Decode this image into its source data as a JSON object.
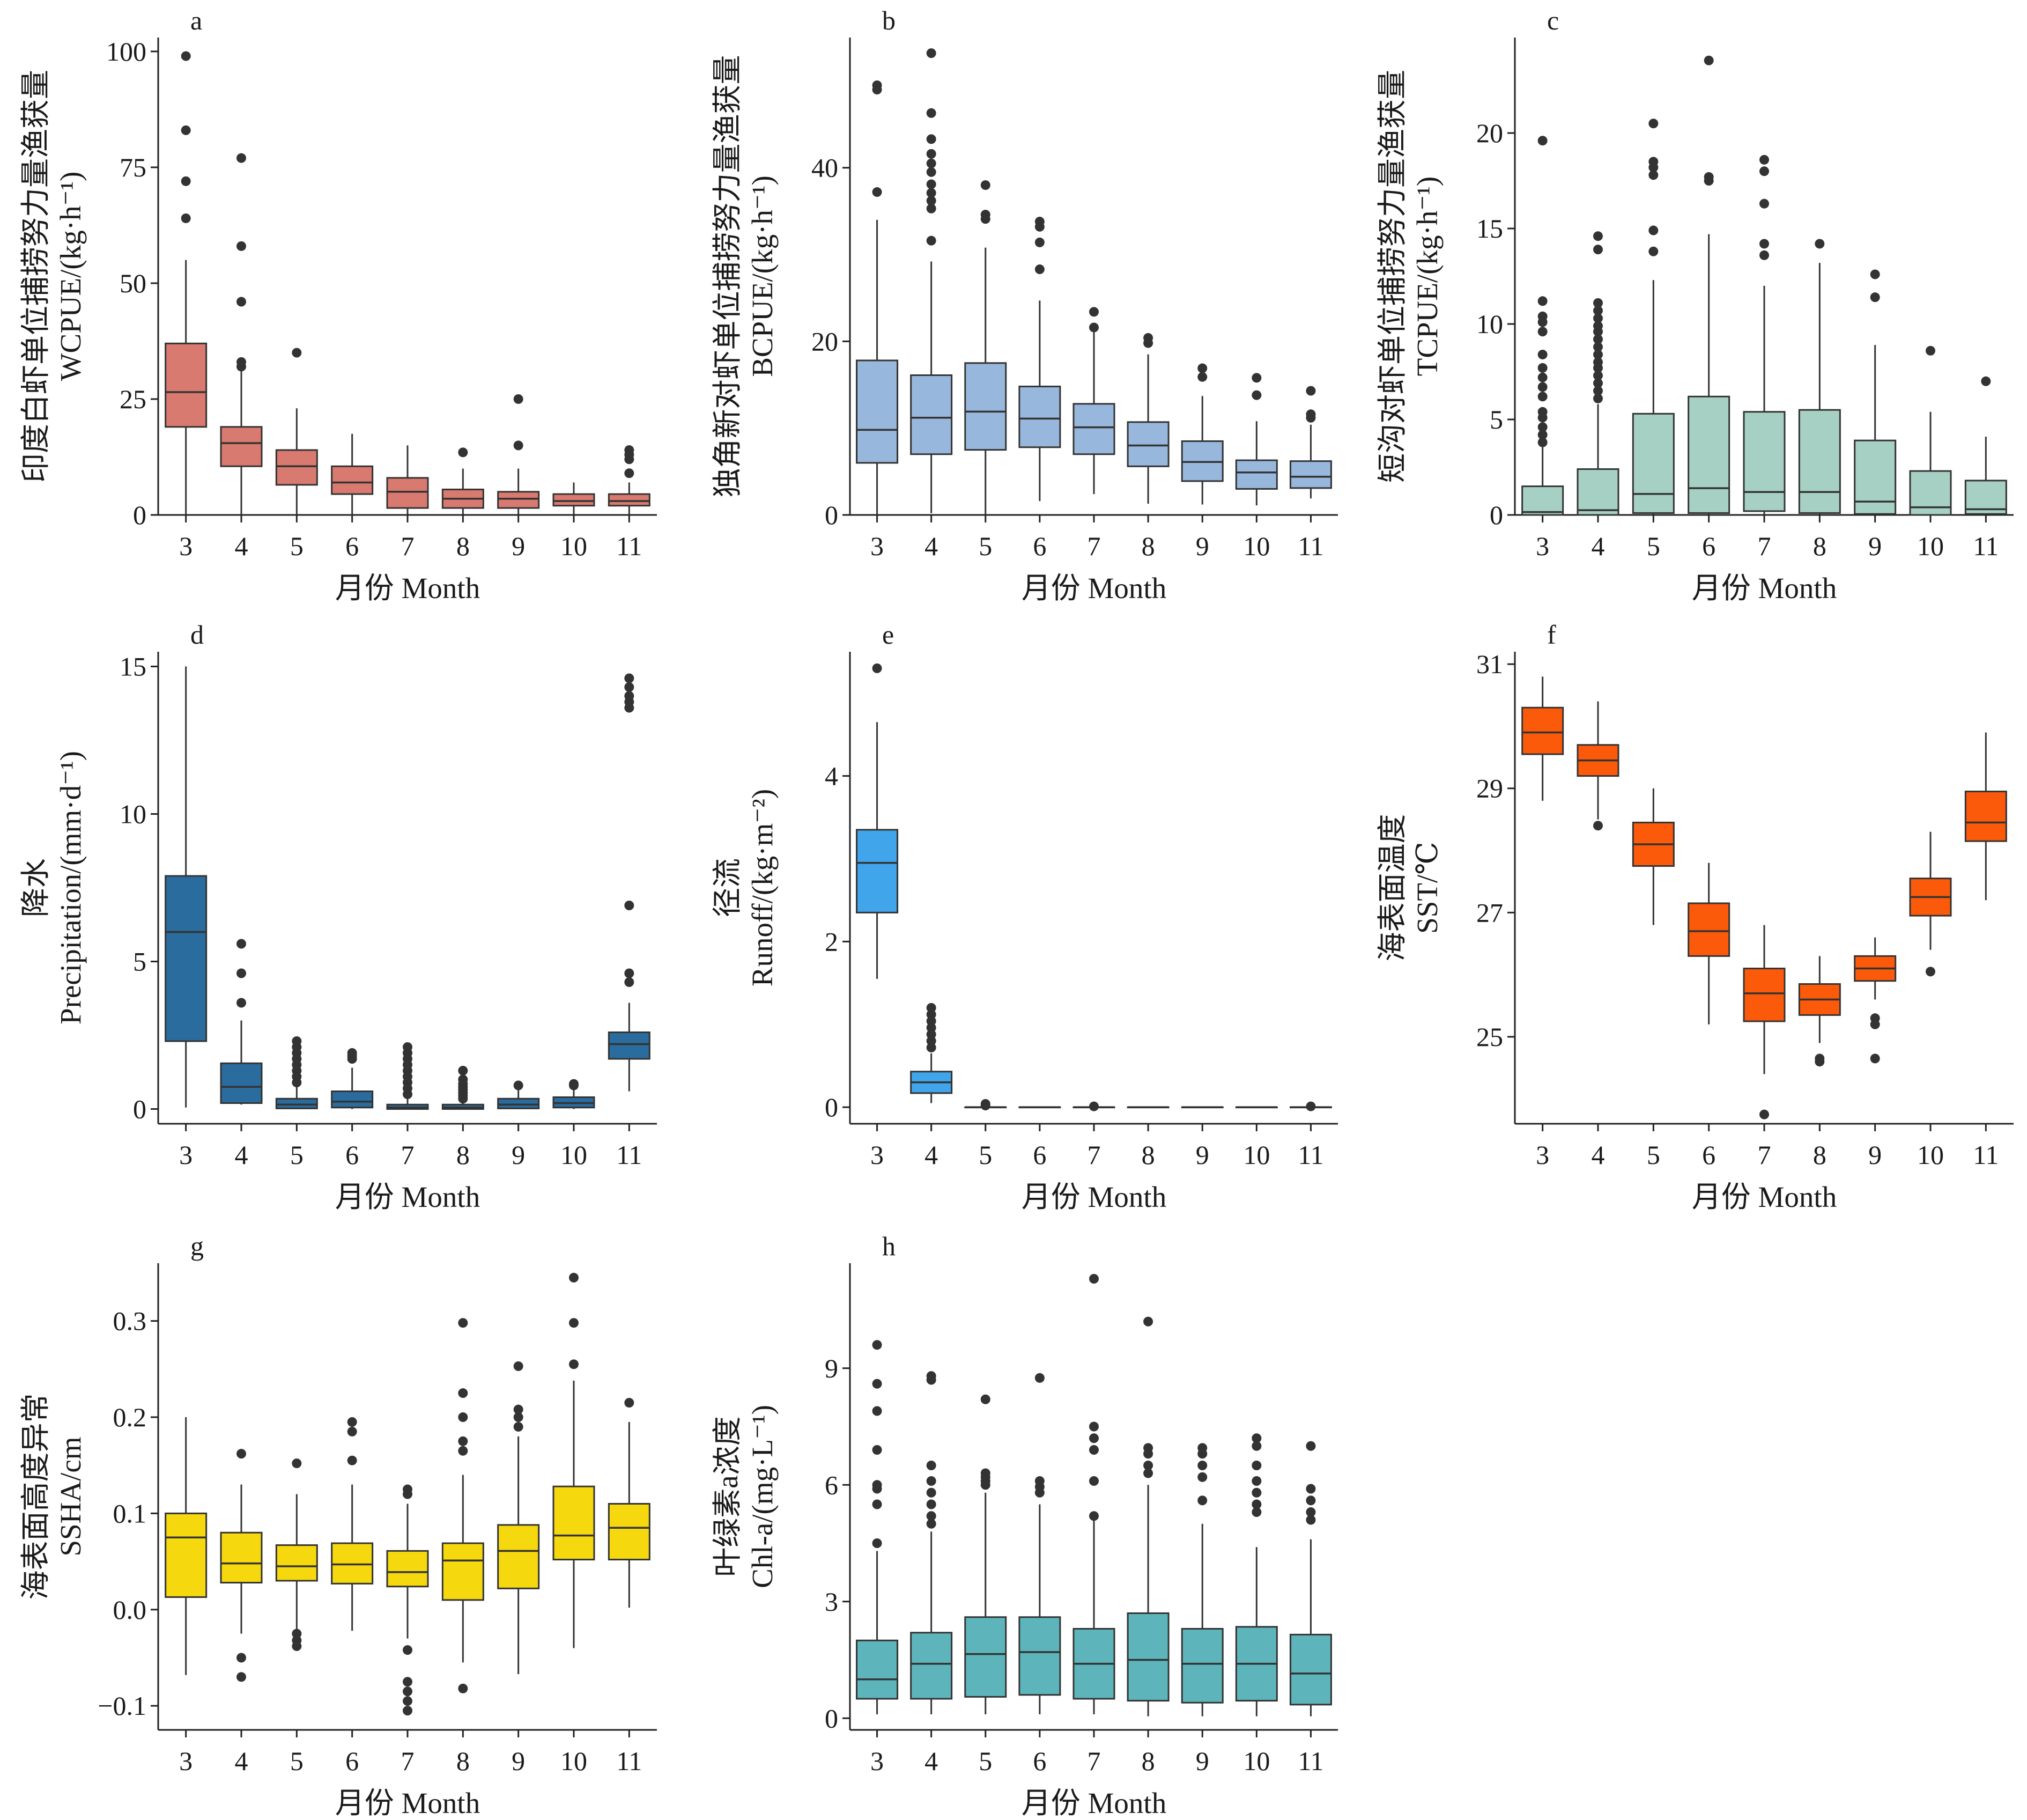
{
  "figure": {
    "common_xlabel": "月份 Month",
    "months": [
      "3",
      "4",
      "5",
      "6",
      "7",
      "8",
      "9",
      "10",
      "11"
    ]
  },
  "chart_data": [
    {
      "id": "a",
      "letter": "a",
      "type": "box",
      "ylabel": "印度白虾单位捕捞努力量渔获量",
      "ylabel2": "WCPUE/(kg·h⁻¹)",
      "xlabel": "月份 Month",
      "ylim": [
        0,
        103
      ],
      "yticks": [
        0,
        25,
        50,
        75,
        100
      ],
      "color": "#d87a6f",
      "categories": [
        "3",
        "4",
        "5",
        "6",
        "7",
        "8",
        "9",
        "10",
        "11"
      ],
      "boxes": [
        {
          "lw": 0,
          "q1": 19,
          "med": 26.5,
          "q3": 37,
          "uw": 55,
          "out": [
            64,
            72,
            83,
            99
          ]
        },
        {
          "lw": 0,
          "q1": 10.5,
          "med": 15.5,
          "q3": 19,
          "uw": 31,
          "out": [
            32,
            33,
            46,
            58,
            77
          ]
        },
        {
          "lw": 0,
          "q1": 6.5,
          "med": 10.5,
          "q3": 14,
          "uw": 23,
          "out": [
            35
          ]
        },
        {
          "lw": 0,
          "q1": 4.5,
          "med": 7,
          "q3": 10.5,
          "uw": 17.5,
          "out": []
        },
        {
          "lw": 0,
          "q1": 1.5,
          "med": 5,
          "q3": 8,
          "uw": 15,
          "out": []
        },
        {
          "lw": 0,
          "q1": 1.5,
          "med": 3.5,
          "q3": 5.5,
          "uw": 10,
          "out": [
            13.5
          ]
        },
        {
          "lw": 0,
          "q1": 1.5,
          "med": 3.5,
          "q3": 5,
          "uw": 10,
          "out": [
            15,
            25
          ]
        },
        {
          "lw": 0,
          "q1": 2,
          "med": 3,
          "q3": 4.5,
          "uw": 7,
          "out": []
        },
        {
          "lw": 0,
          "q1": 2,
          "med": 3,
          "q3": 4.5,
          "uw": 7,
          "out": [
            9,
            12,
            13,
            14
          ]
        }
      ]
    },
    {
      "id": "b",
      "letter": "b",
      "type": "box",
      "ylabel": "独角新对虾单位捕捞努力量渔获量",
      "ylabel2": "BCPUE/(kg·h⁻¹)",
      "xlabel": "月份 Month",
      "ylim": [
        0,
        55
      ],
      "yticks": [
        0,
        20,
        40
      ],
      "color": "#98b7dc",
      "categories": [
        "3",
        "4",
        "5",
        "6",
        "7",
        "8",
        "9",
        "10",
        "11"
      ],
      "boxes": [
        {
          "lw": 0,
          "q1": 6,
          "med": 9.8,
          "q3": 17.8,
          "uw": 34,
          "out": [
            37.2,
            49,
            49.5
          ]
        },
        {
          "lw": 0.2,
          "q1": 7,
          "med": 11.2,
          "q3": 16.1,
          "uw": 29.2,
          "out": [
            31.6,
            35.3,
            36.2,
            37.1,
            38.1,
            39.5,
            40.5,
            41.6,
            43.3,
            46.3,
            53.2
          ]
        },
        {
          "lw": 0,
          "q1": 7.5,
          "med": 11.9,
          "q3": 17.5,
          "uw": 30.8,
          "out": [
            34.1,
            34.6,
            38
          ]
        },
        {
          "lw": 1.6,
          "q1": 7.8,
          "med": 11.1,
          "q3": 14.8,
          "uw": 24.7,
          "out": [
            28.3,
            31.4,
            33.2,
            33.8
          ]
        },
        {
          "lw": 2.4,
          "q1": 7,
          "med": 10.1,
          "q3": 12.8,
          "uw": 21.1,
          "out": [
            21.6,
            23.4
          ]
        },
        {
          "lw": 1.3,
          "q1": 5.6,
          "med": 8,
          "q3": 10.7,
          "uw": 18.5,
          "out": [
            19.8,
            20.4
          ]
        },
        {
          "lw": 1.2,
          "q1": 3.9,
          "med": 6.1,
          "q3": 8.5,
          "uw": 13.7,
          "out": [
            15.9,
            16.9
          ]
        },
        {
          "lw": 1.1,
          "q1": 3,
          "med": 4.9,
          "q3": 6.3,
          "uw": 10.8,
          "out": [
            13.8,
            15.8
          ]
        },
        {
          "lw": 1.9,
          "q1": 3.1,
          "med": 4.4,
          "q3": 6.2,
          "uw": 10.4,
          "out": [
            11.2,
            11.6,
            14.3
          ]
        }
      ]
    },
    {
      "id": "c",
      "letter": "c",
      "type": "box",
      "ylabel": "短沟对虾单位捕捞努力量渔获量",
      "ylabel2": "TCPUE/(kg·h⁻¹)",
      "xlabel": "月份 Month",
      "ylim": [
        0,
        25
      ],
      "yticks": [
        0,
        5,
        10,
        15,
        20
      ],
      "color": "#a6d0c3",
      "categories": [
        "3",
        "4",
        "5",
        "6",
        "7",
        "8",
        "9",
        "10",
        "11"
      ],
      "boxes": [
        {
          "lw": 0,
          "q1": 0,
          "med": 0.15,
          "q3": 1.5,
          "uw": 3.6,
          "out": [
            3.8,
            4.2,
            4.6,
            5.1,
            5.4,
            6.2,
            6.7,
            7.2,
            7.7,
            8.4,
            9.6,
            10.1,
            10.4,
            11.2,
            19.6
          ]
        },
        {
          "lw": 0,
          "q1": 0,
          "med": 0.25,
          "q3": 2.4,
          "uw": 5.8,
          "out": [
            6.1,
            6.5,
            6.9,
            7.3,
            7.7,
            8,
            8.4,
            8.8,
            9.2,
            9.6,
            9.9,
            10.3,
            10.7,
            11.1,
            13.9,
            14.6
          ]
        },
        {
          "lw": 0,
          "q1": 0.1,
          "med": 1.1,
          "q3": 5.3,
          "uw": 12.3,
          "out": [
            13.8,
            14.9,
            17.8,
            18.2,
            18.5,
            20.5
          ]
        },
        {
          "lw": 0,
          "q1": 0.1,
          "med": 1.4,
          "q3": 6.2,
          "uw": 14.7,
          "out": [
            17.5,
            17.7,
            23.8
          ]
        },
        {
          "lw": 0,
          "q1": 0.2,
          "med": 1.2,
          "q3": 5.4,
          "uw": 12,
          "out": [
            13.6,
            14.2,
            16.3,
            18,
            18.6
          ]
        },
        {
          "lw": 0,
          "q1": 0.1,
          "med": 1.2,
          "q3": 5.5,
          "uw": 13.2,
          "out": [
            14.2
          ]
        },
        {
          "lw": 0,
          "q1": 0.05,
          "med": 0.7,
          "q3": 3.9,
          "uw": 8.9,
          "out": [
            11.4,
            12.6
          ]
        },
        {
          "lw": 0,
          "q1": 0,
          "med": 0.4,
          "q3": 2.3,
          "uw": 5.4,
          "out": [
            8.6
          ]
        },
        {
          "lw": 0,
          "q1": 0.05,
          "med": 0.3,
          "q3": 1.8,
          "uw": 4.1,
          "out": [
            7
          ]
        }
      ]
    },
    {
      "id": "d",
      "letter": "d",
      "type": "box",
      "ylabel": "降水",
      "ylabel2": "Precipitation/(mm·d⁻¹)",
      "xlabel": "月份 Month",
      "ylim": [
        -0.5,
        15.5
      ],
      "yticks": [
        0,
        5,
        10,
        15
      ],
      "color": "#2a6c9d",
      "categories": [
        "3",
        "4",
        "5",
        "6",
        "7",
        "8",
        "9",
        "10",
        "11"
      ],
      "boxes": [
        {
          "lw": 0.05,
          "q1": 2.3,
          "med": 6,
          "q3": 7.9,
          "uw": 15,
          "out": []
        },
        {
          "lw": 0.15,
          "q1": 0.2,
          "med": 0.75,
          "q3": 1.55,
          "uw": 3,
          "out": [
            3.6,
            4.6,
            5.6
          ]
        },
        {
          "lw": 0,
          "q1": 0.02,
          "med": 0.15,
          "q3": 0.35,
          "uw": 0.75,
          "out": [
            0.9,
            1.1,
            1.3,
            1.5,
            1.7,
            1.9,
            2.1,
            2.3
          ]
        },
        {
          "lw": 0,
          "q1": 0.05,
          "med": 0.25,
          "q3": 0.6,
          "uw": 1.4,
          "out": [
            1.7,
            1.8,
            1.9
          ]
        },
        {
          "lw": 0,
          "q1": 0,
          "med": 0.05,
          "q3": 0.15,
          "uw": 0.4,
          "out": [
            0.5,
            0.7,
            0.9,
            1.1,
            1.3,
            1.5,
            1.7,
            1.9,
            2.1
          ]
        },
        {
          "lw": 0,
          "q1": 0,
          "med": 0.05,
          "q3": 0.15,
          "uw": 0.3,
          "out": [
            0.35,
            0.45,
            0.55,
            0.65,
            0.75,
            0.85,
            1,
            1.3
          ]
        },
        {
          "lw": 0,
          "q1": 0.02,
          "med": 0.15,
          "q3": 0.35,
          "uw": 0.7,
          "out": [
            0.8
          ]
        },
        {
          "lw": 0,
          "q1": 0.05,
          "med": 0.2,
          "q3": 0.4,
          "uw": 0.7,
          "out": [
            0.8,
            0.85
          ]
        },
        {
          "lw": 0.6,
          "q1": 1.7,
          "med": 2.2,
          "q3": 2.6,
          "uw": 3.6,
          "out": [
            4.3,
            4.6,
            6.9,
            13.6,
            13.8,
            14,
            14.3,
            14.6
          ]
        }
      ]
    },
    {
      "id": "e",
      "letter": "e",
      "type": "box",
      "ylabel": "径流",
      "ylabel2": "Runoff/(kg·m⁻²)",
      "xlabel": "月份 Month",
      "ylim": [
        -0.2,
        5.5
      ],
      "yticks": [
        0,
        2,
        4
      ],
      "color": "#41a5ec",
      "categories": [
        "3",
        "4",
        "5",
        "6",
        "7",
        "8",
        "9",
        "10",
        "11"
      ],
      "boxes": [
        {
          "lw": 1.55,
          "q1": 2.35,
          "med": 2.95,
          "q3": 3.35,
          "uw": 4.65,
          "out": [
            5.3
          ]
        },
        {
          "lw": 0.05,
          "q1": 0.17,
          "med": 0.3,
          "q3": 0.43,
          "uw": 0.65,
          "out": [
            0.72,
            0.8,
            0.88,
            0.96,
            1.04,
            1.12,
            1.2
          ]
        },
        {
          "lw": 0,
          "q1": 0,
          "med": 0,
          "q3": 0,
          "uw": 0,
          "out": [
            0.02,
            0.04
          ]
        },
        {
          "lw": 0,
          "q1": 0,
          "med": 0,
          "q3": 0,
          "uw": 0,
          "out": []
        },
        {
          "lw": 0,
          "q1": 0,
          "med": 0,
          "q3": 0,
          "uw": 0,
          "out": [
            0.01
          ]
        },
        {
          "lw": 0,
          "q1": 0,
          "med": 0,
          "q3": 0,
          "uw": 0,
          "out": []
        },
        {
          "lw": 0,
          "q1": 0,
          "med": 0,
          "q3": 0,
          "uw": 0,
          "out": []
        },
        {
          "lw": 0,
          "q1": 0,
          "med": 0,
          "q3": 0,
          "uw": 0,
          "out": []
        },
        {
          "lw": 0,
          "q1": 0,
          "med": 0,
          "q3": 0,
          "uw": 0,
          "out": [
            0.01
          ]
        }
      ]
    },
    {
      "id": "f",
      "letter": "f",
      "type": "box",
      "ylabel": "海表面温度",
      "ylabel2": "SST/℃",
      "xlabel": "月份 Month",
      "ylim": [
        23.6,
        31.2
      ],
      "yticks": [
        25,
        27,
        29,
        31
      ],
      "color": "#fb5a0b",
      "categories": [
        "3",
        "4",
        "5",
        "6",
        "7",
        "8",
        "9",
        "10",
        "11"
      ],
      "boxes": [
        {
          "lw": 28.8,
          "q1": 29.55,
          "med": 29.9,
          "q3": 30.3,
          "uw": 30.8,
          "out": []
        },
        {
          "lw": 28.5,
          "q1": 29.2,
          "med": 29.45,
          "q3": 29.7,
          "uw": 30.4,
          "out": [
            28.4
          ]
        },
        {
          "lw": 26.8,
          "q1": 27.75,
          "med": 28.1,
          "q3": 28.45,
          "uw": 29,
          "out": []
        },
        {
          "lw": 25.2,
          "q1": 26.3,
          "med": 26.7,
          "q3": 27.15,
          "uw": 27.8,
          "out": []
        },
        {
          "lw": 24.4,
          "q1": 25.25,
          "med": 25.7,
          "q3": 26.1,
          "uw": 26.8,
          "out": [
            23.75
          ]
        },
        {
          "lw": 24.9,
          "q1": 25.35,
          "med": 25.6,
          "q3": 25.85,
          "uw": 26.3,
          "out": [
            24.6,
            24.65
          ]
        },
        {
          "lw": 25.6,
          "q1": 25.9,
          "med": 26.1,
          "q3": 26.3,
          "uw": 26.6,
          "out": [
            25.2,
            25.3,
            24.65
          ]
        },
        {
          "lw": 26.4,
          "q1": 26.95,
          "med": 27.25,
          "q3": 27.55,
          "uw": 28.3,
          "out": [
            26.05
          ]
        },
        {
          "lw": 27.2,
          "q1": 28.15,
          "med": 28.45,
          "q3": 28.95,
          "uw": 29.9,
          "out": []
        }
      ]
    },
    {
      "id": "g",
      "letter": "g",
      "type": "box",
      "ylabel": "海表面高度异常",
      "ylabel2": "SSHA/cm",
      "xlabel": "月份 Month",
      "ylim": [
        -0.125,
        0.36
      ],
      "yticks": [
        -0.1,
        0,
        0.1,
        0.2,
        0.3
      ],
      "ytick_labels": [
        "−0.1",
        "0.0",
        "0.1",
        "0.2",
        "0.3"
      ],
      "color": "#f5d80e",
      "categories": [
        "3",
        "4",
        "5",
        "6",
        "7",
        "8",
        "9",
        "10",
        "11"
      ],
      "boxes": [
        {
          "lw": -0.068,
          "q1": 0.013,
          "med": 0.075,
          "q3": 0.1,
          "uw": 0.2,
          "out": []
        },
        {
          "lw": -0.025,
          "q1": 0.028,
          "med": 0.048,
          "q3": 0.08,
          "uw": 0.13,
          "out": [
            -0.05,
            -0.07,
            0.162
          ]
        },
        {
          "lw": -0.022,
          "q1": 0.03,
          "med": 0.045,
          "q3": 0.067,
          "uw": 0.12,
          "out": [
            -0.025,
            -0.032,
            -0.038,
            0.152
          ]
        },
        {
          "lw": -0.022,
          "q1": 0.027,
          "med": 0.047,
          "q3": 0.069,
          "uw": 0.13,
          "out": [
            0.155,
            0.185,
            0.195
          ]
        },
        {
          "lw": -0.03,
          "q1": 0.024,
          "med": 0.039,
          "q3": 0.061,
          "uw": 0.11,
          "out": [
            -0.042,
            -0.075,
            -0.085,
            -0.095,
            -0.105,
            0.12,
            0.125
          ]
        },
        {
          "lw": -0.055,
          "q1": 0.01,
          "med": 0.051,
          "q3": 0.069,
          "uw": 0.14,
          "out": [
            -0.082,
            0.165,
            0.175,
            0.2,
            0.225,
            0.298
          ]
        },
        {
          "lw": -0.067,
          "q1": 0.022,
          "med": 0.061,
          "q3": 0.088,
          "uw": 0.18,
          "out": [
            0.19,
            0.2,
            0.208,
            0.253
          ]
        },
        {
          "lw": -0.04,
          "q1": 0.052,
          "med": 0.077,
          "q3": 0.128,
          "uw": 0.238,
          "out": [
            0.255,
            0.298,
            0.345
          ]
        },
        {
          "lw": 0.002,
          "q1": 0.052,
          "med": 0.085,
          "q3": 0.11,
          "uw": 0.195,
          "out": [
            0.215
          ]
        }
      ]
    },
    {
      "id": "h",
      "letter": "h",
      "type": "box",
      "ylabel": "叶绿素a浓度",
      "ylabel2": "Chl-a/(mg·L⁻¹)",
      "xlabel": "月份 Month",
      "ylim": [
        -0.3,
        11.7
      ],
      "yticks": [
        0,
        3,
        6,
        9
      ],
      "color": "#5db5bb",
      "categories": [
        "3",
        "4",
        "5",
        "6",
        "7",
        "8",
        "9",
        "10",
        "11"
      ],
      "boxes": [
        {
          "lw": 0.1,
          "q1": 0.5,
          "med": 1,
          "q3": 2,
          "uw": 4.3,
          "out": [
            4.5,
            5.5,
            5.9,
            6,
            6.9,
            7.9,
            8.6,
            9.6
          ]
        },
        {
          "lw": 0.1,
          "q1": 0.5,
          "med": 1.4,
          "q3": 2.2,
          "uw": 4.8,
          "out": [
            5,
            5.2,
            5.5,
            5.8,
            6.1,
            6.5,
            8.7,
            8.8
          ]
        },
        {
          "lw": 0.1,
          "q1": 0.55,
          "med": 1.65,
          "q3": 2.6,
          "uw": 5.8,
          "out": [
            6,
            6.1,
            6.2,
            6.3,
            8.2
          ]
        },
        {
          "lw": 0.1,
          "q1": 0.6,
          "med": 1.7,
          "q3": 2.6,
          "uw": 5.5,
          "out": [
            5.8,
            5.95,
            6.1,
            8.75
          ]
        },
        {
          "lw": 0.1,
          "q1": 0.5,
          "med": 1.4,
          "q3": 2.3,
          "uw": 5.1,
          "out": [
            5.2,
            6.1,
            6.9,
            7.2,
            7.5,
            11.3
          ]
        },
        {
          "lw": 0.05,
          "q1": 0.45,
          "med": 1.5,
          "q3": 2.7,
          "uw": 6,
          "out": [
            6.3,
            6.5,
            6.8,
            6.95,
            10.2
          ]
        },
        {
          "lw": 0.05,
          "q1": 0.4,
          "med": 1.4,
          "q3": 2.3,
          "uw": 5,
          "out": [
            5.6,
            6.2,
            6.5,
            6.8,
            6.95
          ]
        },
        {
          "lw": 0.05,
          "q1": 0.45,
          "med": 1.4,
          "q3": 2.35,
          "uw": 4.4,
          "out": [
            5.3,
            5.5,
            5.8,
            6.1,
            6.5,
            7,
            7.2
          ]
        },
        {
          "lw": 0.05,
          "q1": 0.35,
          "med": 1.15,
          "q3": 2.15,
          "uw": 4.6,
          "out": [
            5.1,
            5.3,
            5.6,
            5.9,
            7
          ]
        }
      ]
    }
  ]
}
